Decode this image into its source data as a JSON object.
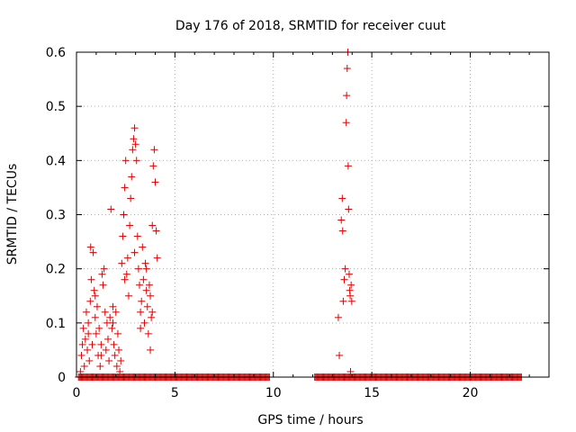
{
  "chart_data": {
    "type": "scatter",
    "title": "Day 176 of 2018, SRMTID for receiver cuut",
    "xlabel": "GPS time / hours",
    "ylabel": "SRMTID / TECUs",
    "xlim": [
      0,
      24
    ],
    "ylim": [
      0,
      0.6
    ],
    "xticks": [
      0,
      5,
      10,
      15,
      20
    ],
    "xtick_labels": [
      "0",
      "5",
      "10",
      "15",
      "20"
    ],
    "yticks": [
      0,
      0.1,
      0.2,
      0.3,
      0.4,
      0.5,
      0.6
    ],
    "ytick_labels": [
      "0",
      "0.1",
      "0.2",
      "0.3",
      "0.4",
      "0.5",
      "0.6"
    ],
    "grid": true,
    "marker": "+",
    "color": "#e00000",
    "series": [
      {
        "name": "SRMTID",
        "points": [
          [
            0.2,
            0.01
          ],
          [
            0.25,
            0.04
          ],
          [
            0.3,
            0.06
          ],
          [
            0.35,
            0.09
          ],
          [
            0.4,
            0.02
          ],
          [
            0.45,
            0.07
          ],
          [
            0.5,
            0.12
          ],
          [
            0.55,
            0.05
          ],
          [
            0.6,
            0.1
          ],
          [
            0.65,
            0.03
          ],
          [
            0.7,
            0.14
          ],
          [
            0.72,
            0.24
          ],
          [
            0.75,
            0.18
          ],
          [
            0.8,
            0.06
          ],
          [
            0.85,
            0.23
          ],
          [
            0.9,
            0.16
          ],
          [
            0.95,
            0.11
          ],
          [
            1.0,
            0.08
          ],
          [
            1.05,
            0.13
          ],
          [
            1.1,
            0.04
          ],
          [
            1.15,
            0.09
          ],
          [
            1.2,
            0.02
          ],
          [
            1.25,
            0.06
          ],
          [
            1.3,
            0.19
          ],
          [
            1.35,
            0.17
          ],
          [
            1.4,
            0.2
          ],
          [
            1.45,
            0.12
          ],
          [
            1.5,
            0.05
          ],
          [
            1.55,
            0.1
          ],
          [
            1.6,
            0.07
          ],
          [
            1.65,
            0.03
          ],
          [
            1.7,
            0.11
          ],
          [
            1.75,
            0.31
          ],
          [
            1.8,
            0.09
          ],
          [
            1.85,
            0.13
          ],
          [
            1.9,
            0.06
          ],
          [
            1.95,
            0.04
          ],
          [
            2.0,
            0.12
          ],
          [
            2.05,
            0.02
          ],
          [
            2.1,
            0.08
          ],
          [
            2.15,
            0.05
          ],
          [
            2.2,
            0.01
          ],
          [
            2.25,
            0.03
          ],
          [
            2.3,
            0.21
          ],
          [
            2.35,
            0.26
          ],
          [
            2.4,
            0.3
          ],
          [
            2.45,
            0.35
          ],
          [
            2.5,
            0.4
          ],
          [
            2.55,
            0.19
          ],
          [
            2.6,
            0.22
          ],
          [
            2.65,
            0.15
          ],
          [
            2.7,
            0.28
          ],
          [
            2.75,
            0.33
          ],
          [
            2.8,
            0.37
          ],
          [
            2.85,
            0.42
          ],
          [
            2.9,
            0.44
          ],
          [
            2.95,
            0.46
          ],
          [
            3.0,
            0.43
          ],
          [
            3.05,
            0.4
          ],
          [
            3.1,
            0.26
          ],
          [
            3.15,
            0.2
          ],
          [
            3.2,
            0.17
          ],
          [
            3.25,
            0.12
          ],
          [
            3.3,
            0.14
          ],
          [
            3.35,
            0.24
          ],
          [
            3.4,
            0.18
          ],
          [
            3.45,
            0.1
          ],
          [
            3.5,
            0.21
          ],
          [
            3.55,
            0.16
          ],
          [
            3.6,
            0.13
          ],
          [
            3.65,
            0.08
          ],
          [
            3.7,
            0.17
          ],
          [
            3.75,
            0.15
          ],
          [
            3.8,
            0.11
          ],
          [
            3.85,
            0.28
          ],
          [
            3.9,
            0.39
          ],
          [
            3.95,
            0.42
          ],
          [
            4.0,
            0.36
          ],
          [
            4.05,
            0.27
          ],
          [
            4.1,
            0.22
          ],
          [
            0.6,
            0.08
          ],
          [
            0.95,
            0.15
          ],
          [
            1.25,
            0.04
          ],
          [
            1.85,
            0.1
          ],
          [
            2.45,
            0.18
          ],
          [
            2.95,
            0.23
          ],
          [
            3.25,
            0.09
          ],
          [
            3.55,
            0.2
          ],
          [
            3.75,
            0.05
          ],
          [
            3.85,
            0.12
          ],
          [
            13.3,
            0.11
          ],
          [
            13.35,
            0.04
          ],
          [
            13.45,
            0.29
          ],
          [
            13.5,
            0.33
          ],
          [
            13.52,
            0.27
          ],
          [
            13.55,
            0.14
          ],
          [
            13.6,
            0.18
          ],
          [
            13.65,
            0.2
          ],
          [
            13.7,
            0.47
          ],
          [
            13.72,
            0.52
          ],
          [
            13.75,
            0.57
          ],
          [
            13.78,
            0.6
          ],
          [
            13.8,
            0.39
          ],
          [
            13.82,
            0.31
          ],
          [
            13.85,
            0.19
          ],
          [
            13.88,
            0.16
          ],
          [
            13.9,
            0.15
          ],
          [
            13.92,
            0.01
          ],
          [
            13.95,
            0.17
          ],
          [
            13.98,
            0.14
          ]
        ]
      }
    ],
    "baseline_segments": [
      [
        0.1,
        9.8
      ],
      [
        12.1,
        22.6
      ]
    ]
  }
}
